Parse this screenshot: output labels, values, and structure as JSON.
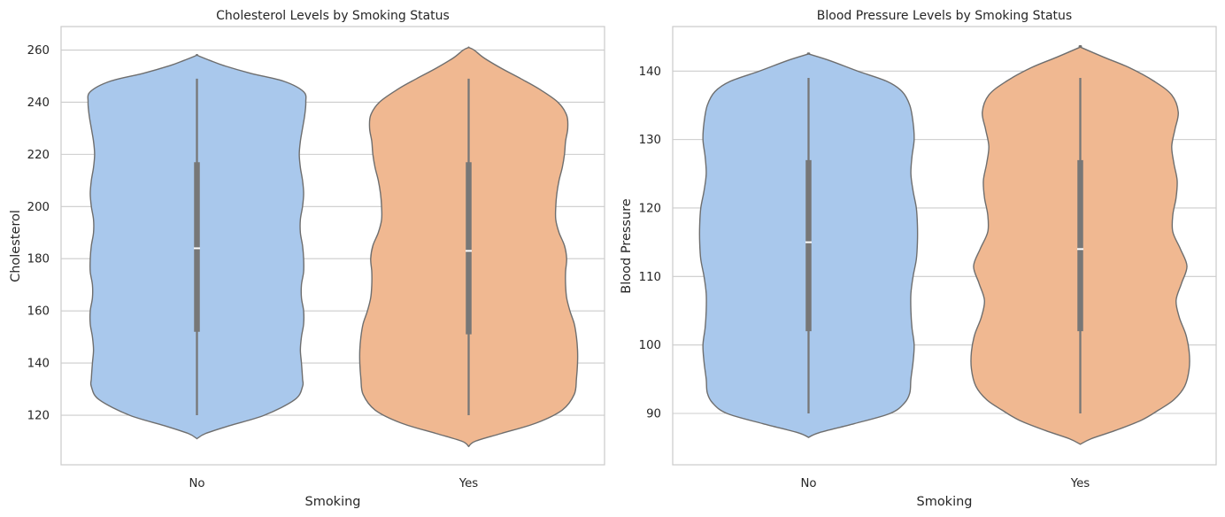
{
  "colors": {
    "no": "#a9c8ec",
    "yes": "#f0b891",
    "outline": "#6e6e6e",
    "box": "#777777",
    "grid": "#cccccc"
  },
  "chart_data": [
    {
      "type": "violin",
      "title": "Cholesterol Levels by Smoking Status",
      "xlabel": "Smoking",
      "ylabel": "Cholesterol",
      "categories": [
        "No",
        "Yes"
      ],
      "ylim": [
        101,
        269
      ],
      "yticks": [
        120,
        140,
        160,
        180,
        200,
        220,
        240,
        260
      ],
      "grid": "horizontal",
      "series": [
        {
          "category": "No",
          "color": "#a9c8ec",
          "min": 120,
          "q1": 152,
          "median": 184,
          "q3": 217,
          "max": 249,
          "kde_y": [
            111,
            113,
            116,
            120,
            126,
            131,
            134,
            140,
            145,
            150,
            155,
            160,
            165,
            170,
            175,
            180,
            185,
            190,
            195,
            200,
            205,
            210,
            215,
            220,
            225,
            230,
            235,
            240,
            244,
            248,
            251,
            254,
            256,
            258
          ],
          "kde_width": [
            0.0,
            0.08,
            0.3,
            0.62,
            0.9,
            0.97,
            0.97,
            0.96,
            0.95,
            0.96,
            0.98,
            0.98,
            0.96,
            0.96,
            0.98,
            0.98,
            0.97,
            0.95,
            0.95,
            0.97,
            0.98,
            0.97,
            0.95,
            0.94,
            0.95,
            0.97,
            0.99,
            1.0,
            0.98,
            0.8,
            0.5,
            0.25,
            0.12,
            0.0
          ]
        },
        {
          "category": "Yes",
          "color": "#f0b891",
          "min": 120,
          "q1": 151,
          "median": 183,
          "q3": 217,
          "max": 249,
          "kde_y": [
            108,
            110,
            113,
            117,
            122,
            128,
            134,
            140,
            145,
            150,
            155,
            160,
            165,
            170,
            175,
            180,
            185,
            190,
            195,
            200,
            205,
            210,
            215,
            220,
            225,
            230,
            235,
            240,
            245,
            249,
            253,
            257,
            260,
            261
          ],
          "kde_width": [
            0.0,
            0.06,
            0.3,
            0.62,
            0.86,
            0.97,
            0.99,
            1.0,
            1.0,
            0.99,
            0.97,
            0.93,
            0.9,
            0.89,
            0.89,
            0.9,
            0.88,
            0.83,
            0.8,
            0.8,
            0.81,
            0.83,
            0.86,
            0.88,
            0.89,
            0.91,
            0.9,
            0.82,
            0.65,
            0.48,
            0.3,
            0.14,
            0.05,
            0.0
          ]
        }
      ]
    },
    {
      "type": "violin",
      "title": "Blood Pressure Levels by Smoking Status",
      "xlabel": "Smoking",
      "ylabel": "Blood Pressure",
      "categories": [
        "No",
        "Yes"
      ],
      "ylim": [
        82.5,
        146.5
      ],
      "yticks": [
        90,
        100,
        110,
        120,
        130,
        140
      ],
      "grid": "horizontal",
      "series": [
        {
          "category": "No",
          "color": "#a9c8ec",
          "min": 90,
          "q1": 102,
          "median": 115,
          "q3": 127,
          "max": 139,
          "kde_y": [
            86.5,
            87.2,
            88.5,
            90.0,
            91.5,
            93.0,
            95.0,
            97.5,
            100.0,
            102.5,
            105.0,
            107.5,
            110.0,
            112.5,
            115.0,
            117.5,
            120.0,
            122.5,
            125.0,
            127.5,
            130.0,
            132.5,
            135.0,
            137.0,
            138.5,
            140.0,
            141.5,
            142.5
          ],
          "kde_width": [
            0.0,
            0.1,
            0.42,
            0.75,
            0.88,
            0.93,
            0.94,
            0.96,
            0.97,
            0.95,
            0.94,
            0.94,
            0.96,
            0.99,
            1.0,
            1.0,
            0.99,
            0.96,
            0.94,
            0.95,
            0.97,
            0.96,
            0.93,
            0.86,
            0.72,
            0.45,
            0.2,
            0.0
          ]
        },
        {
          "category": "Yes",
          "color": "#f0b891",
          "min": 90,
          "q1": 102,
          "median": 114,
          "q3": 127,
          "max": 139,
          "kde_y": [
            85.5,
            86.3,
            87.5,
            89.0,
            90.5,
            92.0,
            94.0,
            96.5,
            99.0,
            101.5,
            104.0,
            106.5,
            109.0,
            111.5,
            114.0,
            116.5,
            119.0,
            121.5,
            124.0,
            126.5,
            129.0,
            131.5,
            134.0,
            136.5,
            138.5,
            140.5,
            142.0,
            143.5
          ],
          "kde_width": [
            0.0,
            0.1,
            0.32,
            0.56,
            0.72,
            0.86,
            0.96,
            1.0,
            1.0,
            0.97,
            0.91,
            0.88,
            0.93,
            0.98,
            0.92,
            0.85,
            0.85,
            0.88,
            0.89,
            0.86,
            0.84,
            0.87,
            0.9,
            0.84,
            0.68,
            0.45,
            0.22,
            0.0
          ]
        }
      ]
    }
  ]
}
